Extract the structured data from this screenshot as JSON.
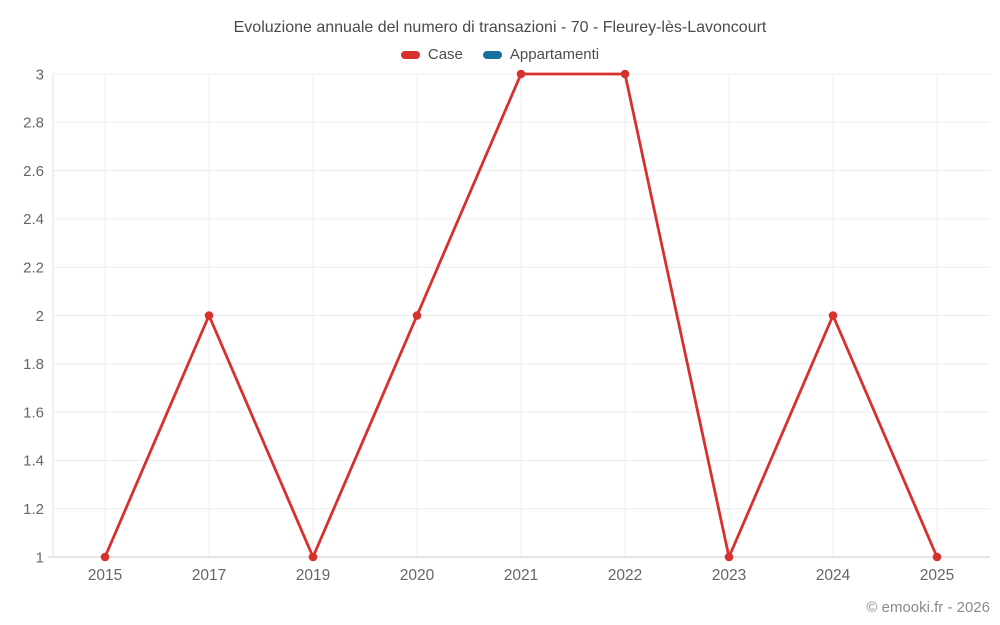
{
  "title": "Evoluzione annuale del numero di transazioni - 70 - Fleurey-lès-Lavoncourt",
  "legend": [
    {
      "label": "Case",
      "color": "#d6312d"
    },
    {
      "label": "Appartamenti",
      "color": "#17709d"
    }
  ],
  "watermark": "© emooki.fr - 2026",
  "chart_data": {
    "type": "line",
    "title": "Evoluzione annuale del numero di transazioni - 70 - Fleurey-lès-Lavoncourt",
    "categories": [
      "2015",
      "2017",
      "2019",
      "2020",
      "2021",
      "2022",
      "2023",
      "2024",
      "2025"
    ],
    "series": [
      {
        "name": "Case",
        "color": "#d6312d",
        "values": [
          1,
          2,
          1,
          2,
          3,
          3,
          1,
          2,
          1
        ]
      },
      {
        "name": "Appartamenti",
        "color": "#17709d",
        "values": [
          null,
          null,
          null,
          null,
          null,
          null,
          null,
          null,
          null
        ]
      }
    ],
    "xlabel": "",
    "ylabel": "",
    "ylim": [
      1,
      3
    ],
    "yticks": [
      1,
      1.2,
      1.4,
      1.6,
      1.8,
      2,
      2.2,
      2.4,
      2.6,
      2.8,
      3
    ],
    "grid": true,
    "legend_position": "top"
  },
  "colors": {
    "grid": "#ececec",
    "axis_border": "#e2e2e2",
    "axis_bottom": "#c9c9c9",
    "tick_text": "#666666",
    "title_text": "#4a4a4a",
    "watermark_text": "#8a8a8a"
  }
}
